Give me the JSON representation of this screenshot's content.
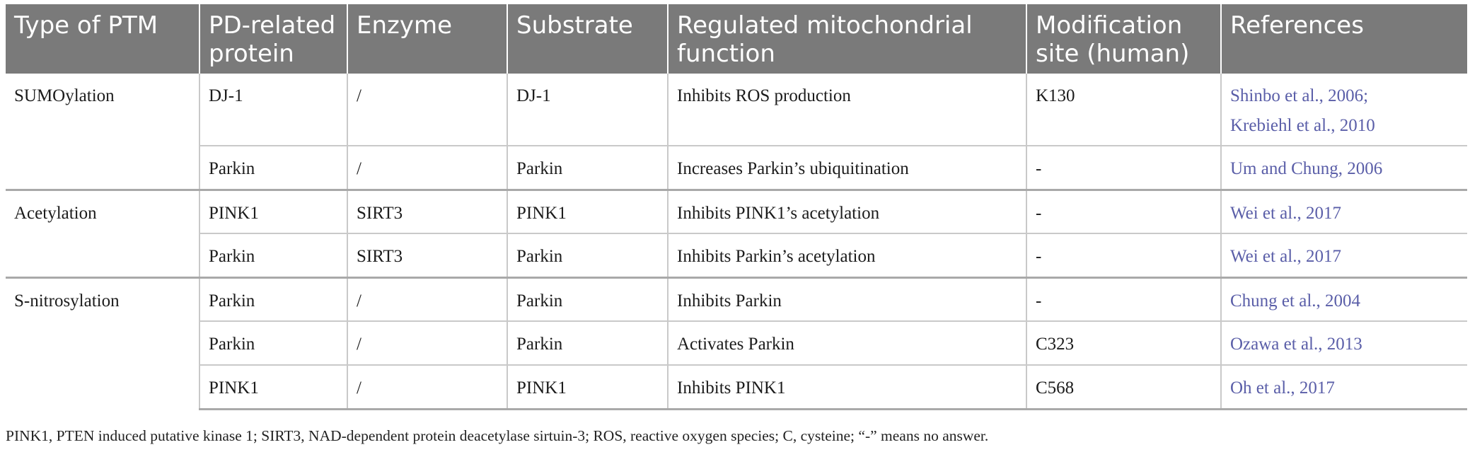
{
  "table": {
    "headers": [
      "Type of PTM",
      "PD-related protein",
      "Enzyme",
      "Substrate",
      "Regulated mitochondrial function",
      "Modification site (human)",
      "References"
    ],
    "rows": [
      {
        "ptm": "SUMOylation",
        "protein": "DJ-1",
        "enzyme": "/",
        "substrate": "DJ-1",
        "function": "Inhibits ROS production",
        "site": "K130",
        "ref1": "Shinbo et al., 2006;",
        "ref2": "Krebiehl et al., 2010"
      },
      {
        "protein": "Parkin",
        "enzyme": "/",
        "substrate": "Parkin",
        "function": "Increases Parkin’s ubiquitination",
        "site": "-",
        "ref1": "Um and Chung, 2006"
      },
      {
        "ptm": "Acetylation",
        "protein": "PINK1",
        "enzyme": "SIRT3",
        "substrate": "PINK1",
        "function": "Inhibits PINK1’s acetylation",
        "site": "-",
        "ref1": "Wei et al., 2017"
      },
      {
        "protein": "Parkin",
        "enzyme": "SIRT3",
        "substrate": "Parkin",
        "function": "Inhibits Parkin’s acetylation",
        "site": "-",
        "ref1": "Wei et al., 2017"
      },
      {
        "ptm": "S-nitrosylation",
        "protein": "Parkin",
        "enzyme": "/",
        "substrate": "Parkin",
        "function": "Inhibits Parkin",
        "site": "-",
        "ref1": "Chung et al., 2004"
      },
      {
        "protein": "Parkin",
        "enzyme": "/",
        "substrate": "Parkin",
        "function": "Activates Parkin",
        "site": "C323",
        "ref1": "Ozawa et al., 2013"
      },
      {
        "protein": "PINK1",
        "enzyme": "/",
        "substrate": "PINK1",
        "function": "Inhibits PINK1",
        "site": "C568",
        "ref1": "Oh et al., 2017"
      }
    ],
    "footnote": "PINK1, PTEN induced putative kinase 1; SIRT3, NAD-dependent protein deacetylase sirtuin-3; ROS, reactive oxygen species; C, cysteine; “-” means no answer."
  },
  "colors": {
    "header_background": "#7a7a7a",
    "header_text": "#ffffff",
    "reference_link": "#5a5ea8",
    "grid_line": "#c9c9c9"
  }
}
